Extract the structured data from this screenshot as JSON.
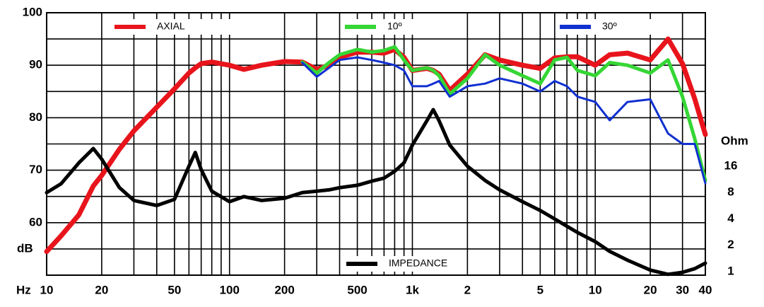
{
  "chart_data": {
    "type": "line",
    "xlabel": "Hz",
    "ylabel": "dB",
    "y2label": "Ohm",
    "xscale": "log",
    "y2scale": "log",
    "xlim": [
      10,
      40000
    ],
    "ylim": [
      50,
      100
    ],
    "y2lim": [
      0.91,
      910
    ],
    "xticks": [
      10,
      20,
      50,
      100,
      200,
      500,
      {
        "value": 1000,
        "label": "1k"
      },
      {
        "value": 2000,
        "label": "2"
      },
      {
        "value": 5000,
        "label": "5"
      },
      {
        "value": 10000,
        "label": "10"
      },
      {
        "value": 20000,
        "label": "20"
      },
      {
        "value": 30000,
        "label": "30"
      },
      {
        "value": 40000,
        "label": "40"
      }
    ],
    "xgrid": [
      20,
      30,
      40,
      50,
      60,
      70,
      80,
      90,
      100,
      200,
      300,
      400,
      500,
      600,
      700,
      800,
      900,
      1000,
      2000,
      3000,
      4000,
      5000,
      6000,
      7000,
      8000,
      9000,
      10000,
      20000,
      30000
    ],
    "yticks": [
      60,
      70,
      80,
      90,
      100
    ],
    "ygrid": [
      55,
      65,
      75,
      85,
      95
    ],
    "y2ticks": [
      1,
      2,
      4,
      8,
      16
    ],
    "grid": true,
    "x": [
      10,
      12,
      15,
      18,
      20,
      25,
      30,
      40,
      50,
      60,
      65,
      70,
      80,
      100,
      120,
      150,
      200,
      250,
      300,
      350,
      400,
      500,
      600,
      700,
      800,
      900,
      1000,
      1200,
      1300,
      1400,
      1600,
      2000,
      2500,
      3000,
      4000,
      5000,
      6000,
      7000,
      8000,
      10000,
      12000,
      15000,
      20000,
      25000,
      30000,
      35000,
      40000
    ],
    "series": [
      {
        "name": "AXIAL",
        "color": "#e8141c",
        "width": 7,
        "values": [
          54.5,
          57.5,
          61.5,
          67,
          69,
          74,
          77.5,
          82,
          85.5,
          88.5,
          89.5,
          90.3,
          90.6,
          90,
          89.2,
          90,
          90.7,
          90.6,
          89.2,
          90,
          91.5,
          92.5,
          92.5,
          92.3,
          93,
          91.5,
          89,
          89.4,
          89,
          88.3,
          85.2,
          88.3,
          92,
          91,
          90,
          89.4,
          91.4,
          91.6,
          91.6,
          90,
          92,
          92.3,
          91,
          95,
          90.3,
          83.6,
          76.8
        ]
      },
      {
        "name": "10º",
        "color": "#35d635",
        "width": 5,
        "values": [
          null,
          null,
          null,
          null,
          null,
          null,
          null,
          null,
          null,
          null,
          null,
          null,
          null,
          null,
          null,
          null,
          null,
          90.6,
          88.5,
          90.5,
          92,
          93,
          92.5,
          92.8,
          93.5,
          91,
          89,
          89.5,
          89,
          88,
          84.5,
          87.5,
          92,
          90,
          88,
          86.5,
          91,
          91.5,
          89,
          88,
          90.5,
          90,
          88.5,
          91,
          84,
          76,
          68
        ]
      },
      {
        "name": "30º",
        "color": "#1030d0",
        "width": 3,
        "values": [
          null,
          null,
          null,
          null,
          null,
          null,
          null,
          null,
          null,
          null,
          null,
          null,
          null,
          null,
          null,
          null,
          null,
          90.5,
          87.8,
          89.5,
          91,
          91.5,
          91,
          90.5,
          90,
          89,
          86,
          86,
          86.5,
          87,
          84,
          86,
          86.5,
          87.5,
          86.5,
          85,
          87,
          86,
          84,
          83,
          79.5,
          83,
          83.5,
          77,
          75,
          75,
          67.5
        ]
      },
      {
        "name": "IMPEDANCE",
        "color": "#000000",
        "width": 5,
        "axis": "y2",
        "values": [
          8,
          10.1,
          17.5,
          25.5,
          19.3,
          9.1,
          6.5,
          5.7,
          6.7,
          16,
          23,
          14.6,
          8.3,
          6.3,
          7.2,
          6.5,
          6.9,
          8,
          8.3,
          8.6,
          9.1,
          9.7,
          10.8,
          11.7,
          14,
          17.5,
          28,
          53,
          71,
          53,
          28,
          16,
          11,
          8.6,
          6.3,
          5,
          4,
          3.3,
          2.8,
          2.2,
          1.7,
          1.35,
          1.04,
          0.93,
          0.98,
          1.08,
          1.25
        ]
      }
    ]
  }
}
